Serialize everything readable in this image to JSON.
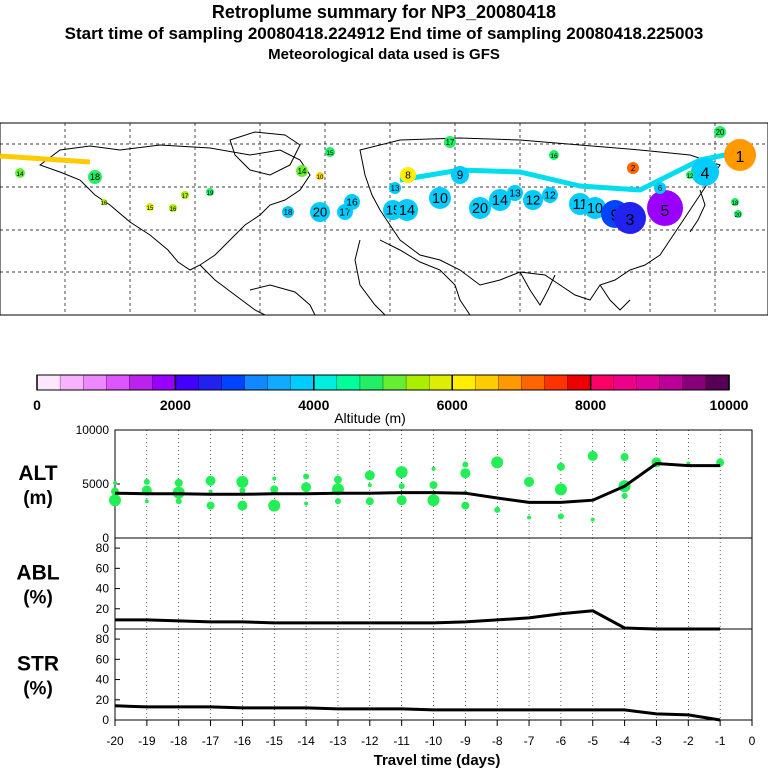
{
  "header": {
    "title": "Retroplume summary for NP3_20080418",
    "sampling": "Start time of sampling 20080418.224912     End time of sampling 20080418.225003",
    "met": "Meteorological data used is GFS"
  },
  "colorbar": {
    "ticks": [
      "0",
      "2000",
      "4000",
      "6000",
      "8000",
      "10000"
    ],
    "label": "Altitude (m)",
    "colors": [
      "#ffe6ff",
      "#f7b3ff",
      "#ee88ff",
      "#dd55ff",
      "#bb22ee",
      "#9900ff",
      "#4400ff",
      "#2222ee",
      "#0044ff",
      "#1188ff",
      "#11aaff",
      "#00ccff",
      "#00eedd",
      "#00ff99",
      "#22ee66",
      "#66ee33",
      "#aaee00",
      "#ddee00",
      "#ffee00",
      "#ffcc00",
      "#ff9900",
      "#ff6600",
      "#ff3300",
      "#ee0000",
      "#ff0066",
      "#ee0088",
      "#dd0099",
      "#bb0099",
      "#880077",
      "#550055"
    ]
  },
  "map": {
    "labels": [
      {
        "t": "14",
        "c": "#66ee33"
      },
      {
        "t": "18",
        "c": "#22ee66"
      },
      {
        "t": "16",
        "c": "#aaee00"
      },
      {
        "t": "15",
        "c": "#ddee00"
      },
      {
        "t": "17",
        "c": "#aaee00"
      },
      {
        "t": "19",
        "c": "#22ee66"
      },
      {
        "t": "16",
        "c": "#aaee00"
      },
      {
        "t": "14",
        "c": "#66ee33"
      },
      {
        "t": "10",
        "c": "#ffcc00"
      },
      {
        "t": "15",
        "c": "#22ee66"
      },
      {
        "t": "17",
        "c": "#22ee66"
      },
      {
        "t": "20",
        "c": "#00ccff"
      },
      {
        "t": "18",
        "c": "#00ccff"
      },
      {
        "t": "17",
        "c": "#00ccff"
      },
      {
        "t": "16",
        "c": "#00ccff"
      },
      {
        "t": "15",
        "c": "#00ccff"
      },
      {
        "t": "14",
        "c": "#00ccff"
      },
      {
        "t": "13",
        "c": "#00ccff"
      },
      {
        "t": "10",
        "c": "#00ccff"
      },
      {
        "t": "8",
        "c": "#ffee00"
      },
      {
        "t": "9",
        "c": "#00ccff"
      },
      {
        "t": "12",
        "c": "#00ccff"
      },
      {
        "t": "20",
        "c": "#00ccff"
      },
      {
        "t": "14",
        "c": "#00ccff"
      },
      {
        "t": "13",
        "c": "#00ccff"
      },
      {
        "t": "12",
        "c": "#00ccff"
      },
      {
        "t": "11",
        "c": "#00ccff"
      },
      {
        "t": "10",
        "c": "#00ccff"
      },
      {
        "t": "9",
        "c": "#0044ff"
      },
      {
        "t": "3",
        "c": "#2222ee"
      },
      {
        "t": "5",
        "c": "#9900ff"
      },
      {
        "t": "4",
        "c": "#00ccff"
      },
      {
        "t": "1",
        "c": "#ff9900"
      },
      {
        "t": "2",
        "c": "#ff6600"
      },
      {
        "t": "6",
        "c": "#00ccff"
      },
      {
        "t": "16",
        "c": "#22ee66"
      },
      {
        "t": "20",
        "c": "#22ee66"
      },
      {
        "t": "12",
        "c": "#22ee66"
      },
      {
        "t": "18",
        "c": "#22ee66"
      },
      {
        "t": "20",
        "c": "#22ee66"
      }
    ]
  },
  "chart_data": [
    {
      "type": "line",
      "title": "ALT",
      "ylabel_line1": "ALT",
      "ylabel_line2": "(m)",
      "ylim": [
        0,
        10000
      ],
      "yticks": [
        "0",
        "5000",
        "10000"
      ],
      "x": [
        -20,
        -19,
        -18,
        -17,
        -16,
        -15,
        -14,
        -13,
        -12,
        -11,
        -10,
        -9,
        -8,
        -7,
        -6,
        -5,
        -4,
        -3,
        -2,
        -1
      ],
      "values": [
        4150,
        4100,
        4100,
        4050,
        4050,
        4100,
        4100,
        4150,
        4150,
        4200,
        4200,
        4150,
        3700,
        3300,
        3300,
        3500,
        4800,
        6900,
        6700,
        6700
      ],
      "scatter": [
        [
          -20,
          5100
        ],
        [
          -20,
          4300
        ],
        [
          -20,
          3500
        ],
        [
          -19,
          5200
        ],
        [
          -19,
          4400
        ],
        [
          -19,
          3400
        ],
        [
          -18,
          5100
        ],
        [
          -18,
          4200
        ],
        [
          -18,
          3400
        ],
        [
          -17,
          5300
        ],
        [
          -17,
          4300
        ],
        [
          -17,
          3000
        ],
        [
          -16,
          5200
        ],
        [
          -16,
          4400
        ],
        [
          -16,
          3000
        ],
        [
          -15,
          5500
        ],
        [
          -15,
          4500
        ],
        [
          -15,
          3000
        ],
        [
          -14,
          5700
        ],
        [
          -14,
          4700
        ],
        [
          -14,
          3200
        ],
        [
          -13,
          5400
        ],
        [
          -13,
          4500
        ],
        [
          -13,
          3400
        ],
        [
          -12,
          5800
        ],
        [
          -12,
          4900
        ],
        [
          -12,
          3400
        ],
        [
          -11,
          6100
        ],
        [
          -11,
          4800
        ],
        [
          -11,
          3500
        ],
        [
          -10,
          6400
        ],
        [
          -10,
          4900
        ],
        [
          -10,
          3500
        ],
        [
          -9,
          6800
        ],
        [
          -9,
          6000
        ],
        [
          -9,
          4200
        ],
        [
          -9,
          3000
        ],
        [
          -8,
          7000
        ],
        [
          -8,
          2600
        ],
        [
          -7,
          5200
        ],
        [
          -7,
          1900
        ],
        [
          -6,
          6600
        ],
        [
          -6,
          4500
        ],
        [
          -6,
          2000
        ],
        [
          -5,
          7600
        ],
        [
          -5,
          1700
        ],
        [
          -4,
          7500
        ],
        [
          -4,
          4800
        ],
        [
          -4,
          3900
        ],
        [
          -3,
          7000
        ],
        [
          -2,
          6900
        ],
        [
          -1,
          7000
        ]
      ]
    },
    {
      "type": "line",
      "title": "ABL",
      "ylabel_line1": "ABL",
      "ylabel_line2": "(%)",
      "ylim": [
        0,
        90
      ],
      "yticks": [
        "0",
        "20",
        "40",
        "60",
        "80"
      ],
      "x": [
        -20,
        -19,
        -18,
        -17,
        -16,
        -15,
        -14,
        -13,
        -12,
        -11,
        -10,
        -9,
        -8,
        -7,
        -6,
        -5,
        -4,
        -3,
        -2,
        -1
      ],
      "values": [
        9,
        9,
        8,
        7,
        7,
        6,
        6,
        6,
        6,
        6,
        6,
        7,
        9,
        11,
        15,
        18,
        1,
        0,
        0,
        0
      ]
    },
    {
      "type": "line",
      "title": "STR",
      "ylabel_line1": "STR",
      "ylabel_line2": "(%)",
      "ylim": [
        0,
        90
      ],
      "yticks": [
        "0",
        "20",
        "40",
        "60",
        "80"
      ],
      "x": [
        -20,
        -19,
        -18,
        -17,
        -16,
        -15,
        -14,
        -13,
        -12,
        -11,
        -10,
        -9,
        -8,
        -7,
        -6,
        -5,
        -4,
        -3,
        -2,
        -1
      ],
      "values": [
        14,
        13,
        13,
        13,
        12,
        12,
        12,
        11,
        11,
        11,
        10,
        10,
        10,
        10,
        10,
        10,
        10,
        6,
        5,
        0
      ]
    }
  ],
  "xaxis": {
    "ticks": [
      "-20",
      "-19",
      "-18",
      "-17",
      "-16",
      "-15",
      "-14",
      "-13",
      "-12",
      "-11",
      "-10",
      "-9",
      "-8",
      "-7",
      "-6",
      "-5",
      "-4",
      "-3",
      "-2",
      "-1",
      "0"
    ],
    "label": "Travel time (days)"
  },
  "colors": {
    "line": "#000000",
    "scatter": "#22ee55",
    "grid": "#000000"
  }
}
